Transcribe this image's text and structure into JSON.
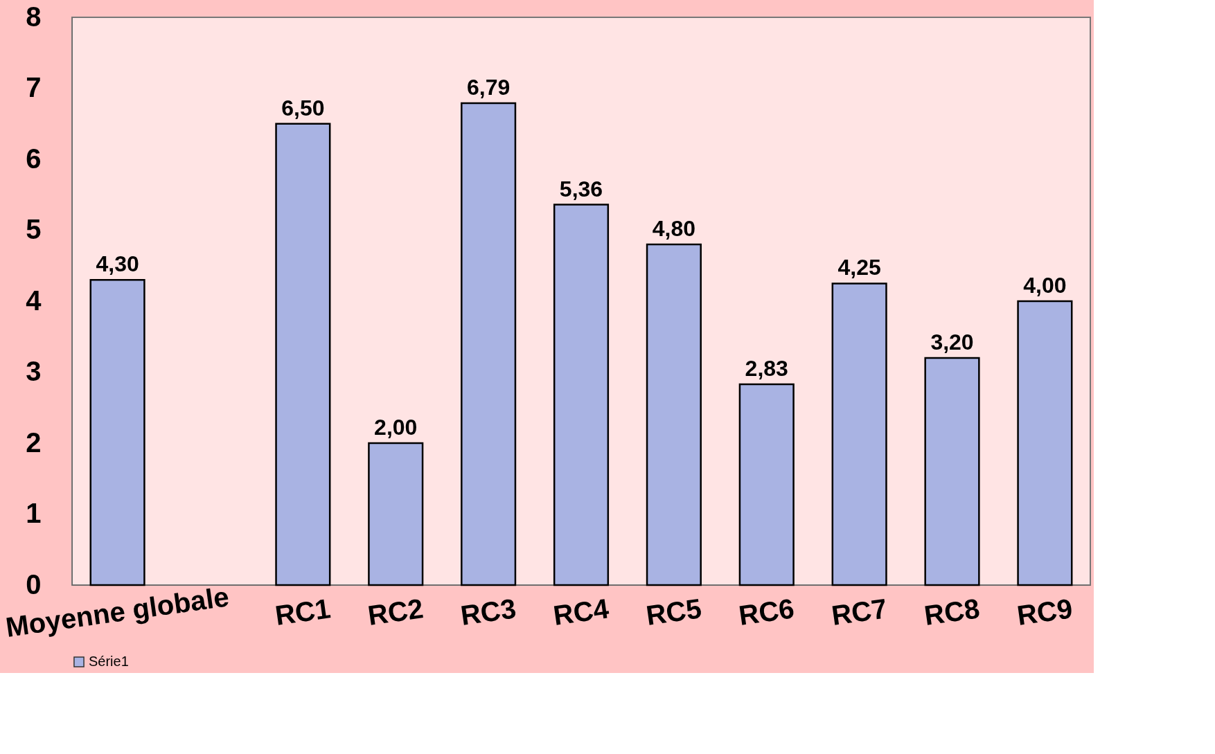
{
  "chart_data": {
    "type": "bar",
    "categories": [
      "Moyenne globale",
      null,
      "RC1",
      "RC2",
      "RC3",
      "RC4",
      "RC5",
      "RC6",
      "RC7",
      "RC8",
      "RC9"
    ],
    "series": [
      {
        "name": "Série1",
        "color": "#a9b3e3",
        "values": [
          4.3,
          null,
          6.5,
          2.0,
          6.79,
          5.36,
          4.8,
          2.83,
          4.25,
          3.2,
          4.0
        ],
        "value_labels": [
          "4,30",
          null,
          "6,50",
          "2,00",
          "6,79",
          "5,36",
          "4,80",
          "2,83",
          "4,25",
          "3,20",
          "4,00"
        ]
      }
    ],
    "ylim": [
      0,
      8
    ],
    "yticks": [
      0,
      1,
      2,
      3,
      4,
      5,
      6,
      7,
      8
    ],
    "grid": false,
    "legend": "bottom"
  }
}
